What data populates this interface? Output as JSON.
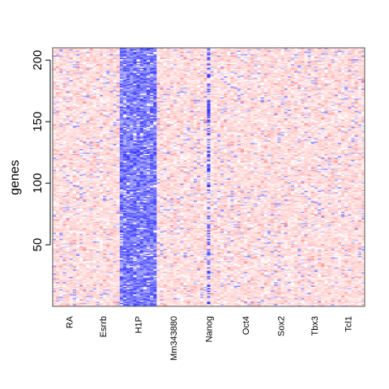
{
  "chart_data": {
    "type": "heatmap",
    "title": "",
    "xlabel": "",
    "ylabel": "genes",
    "ylim": [
      0,
      210
    ],
    "y_ticks": [
      50,
      100,
      150,
      200
    ],
    "rows": 210,
    "columns": [
      {
        "label": "RA",
        "span": [
          1,
          10
        ],
        "pattern": "pink"
      },
      {
        "label": "Esrrb",
        "span": [
          11,
          20
        ],
        "pattern": "pink"
      },
      {
        "label": "H1P",
        "span": [
          21,
          31
        ],
        "pattern": "blue"
      },
      {
        "label": "Mm343880",
        "span": [
          32,
          41
        ],
        "pattern": "pink"
      },
      {
        "label": "Nanog",
        "span": [
          42,
          52
        ],
        "pattern": "pink-blue-stripe"
      },
      {
        "label": "Oct4",
        "span": [
          53,
          63
        ],
        "pattern": "pink"
      },
      {
        "label": "Sox2",
        "span": [
          64,
          73
        ],
        "pattern": "pink"
      },
      {
        "label": "Tbx3",
        "span": [
          74,
          83
        ],
        "pattern": "pink"
      },
      {
        "label": "Tcl1",
        "span": [
          84,
          93
        ],
        "pattern": "pink"
      }
    ],
    "colorscale": {
      "low": "#0000ff",
      "mid": "#ffffff",
      "high": "#ff0000"
    },
    "grid": false,
    "legend": "none"
  }
}
